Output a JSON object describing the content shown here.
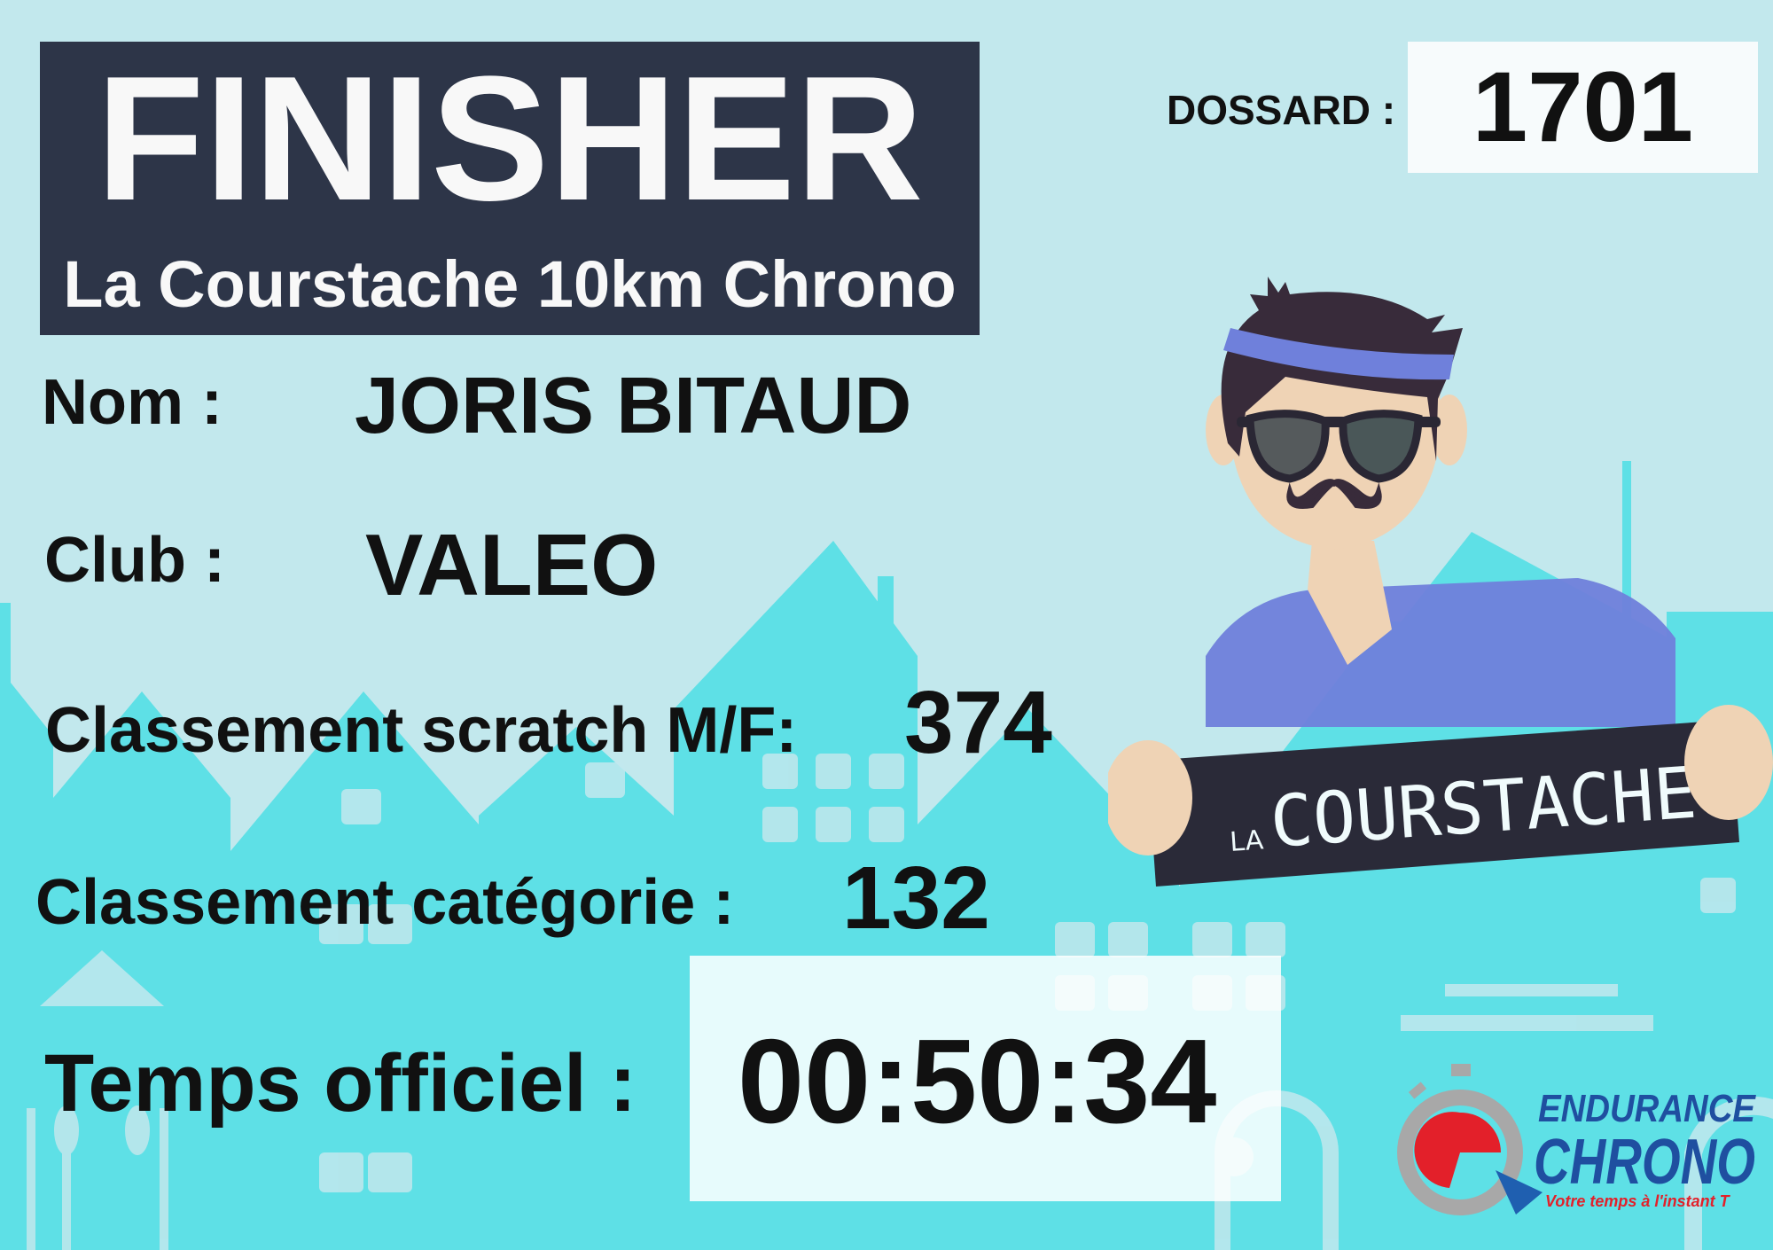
{
  "header": {
    "title": "FINISHER",
    "subtitle": "La Courstache 10km Chrono"
  },
  "dossard": {
    "label": "DOSSARD :",
    "value": "1701"
  },
  "fields": {
    "nom": {
      "label": "Nom :",
      "value": "JORIS BITAUD"
    },
    "club": {
      "label": "Club :",
      "value": "VALEO"
    },
    "scratch": {
      "label": "Classement scratch M/F:",
      "value": "374"
    },
    "categorie": {
      "label": "Classement catégorie :",
      "value": "132"
    },
    "temps": {
      "label": "Temps officiel :",
      "value": "00:50:34"
    }
  },
  "mascot": {
    "sign_text": "La COURSTACHE",
    "icon": "mustache-runner-mascot"
  },
  "logo": {
    "line1": "ENDURANCE",
    "line2": "CHRONO",
    "tagline": "Votre temps à l'instant T",
    "icon": "stopwatch-icon"
  },
  "colors": {
    "background": "#c2e8ed",
    "houses": "#5ee0e6",
    "banner": "#2d3548",
    "logo_blue": "#1f4fa0",
    "logo_red": "#e3202a",
    "headband": "#6f80db"
  }
}
